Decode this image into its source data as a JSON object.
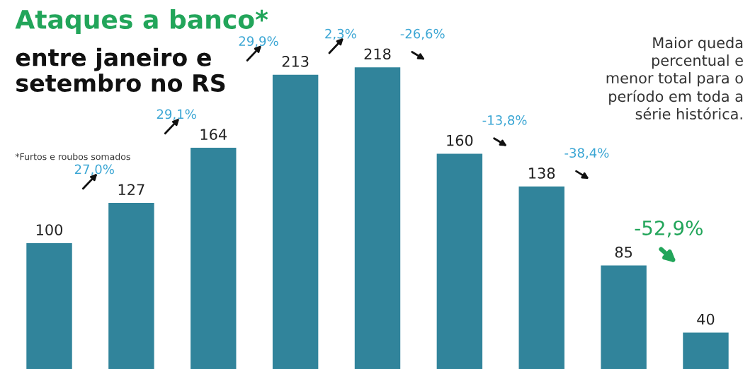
{
  "chart_data": {
    "type": "bar",
    "title": "Ataques a banco*",
    "subtitle": "entre janeiro e\nsetembro no RS",
    "categories": [
      null,
      null,
      null,
      null,
      null,
      null,
      null,
      null,
      null
    ],
    "values": [
      100,
      127,
      164,
      213,
      218,
      160,
      138,
      85,
      40
    ],
    "color": "#31849b",
    "data_labels": true,
    "annotations": [
      "27,0%",
      "29,1%",
      "29,9%",
      "2,3%",
      "-26,6%",
      "-13,8%",
      "-38,4%",
      "-52,9%",
      "*Furtos e roubos somados",
      "Maior queda\npercentual e\nmenor total para o\nperíodo em toda a\nsérie histórica."
    ]
  }
}
